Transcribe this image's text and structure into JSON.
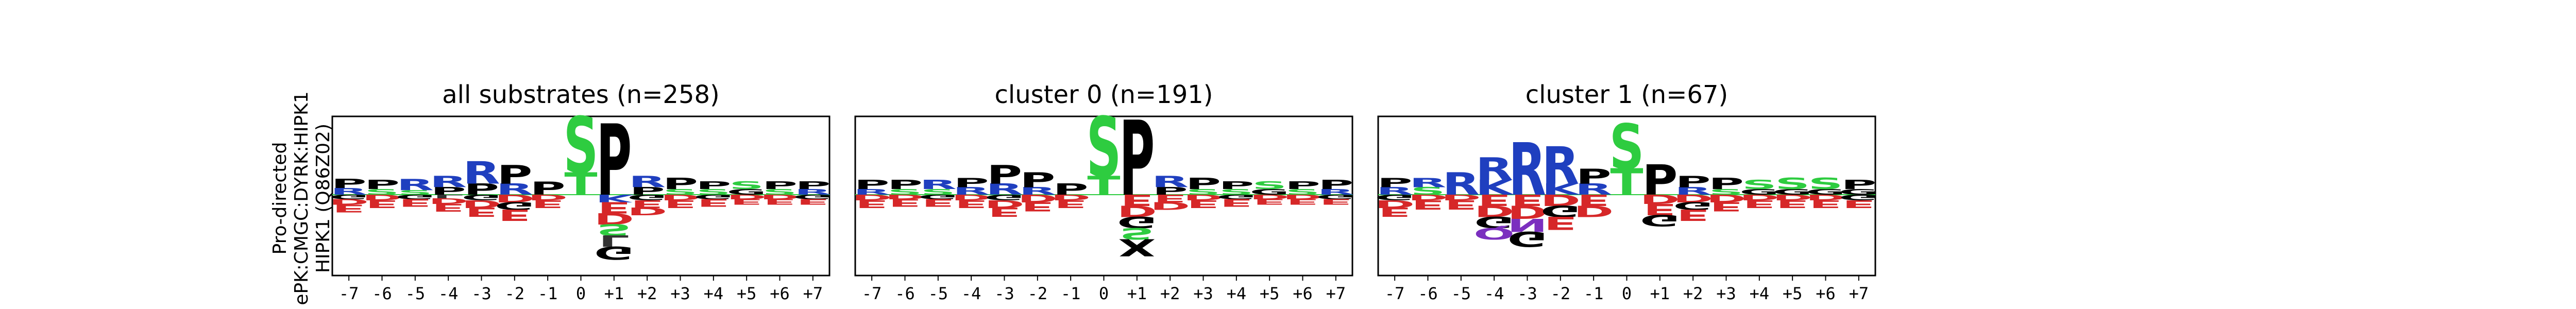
{
  "ylabel_lines": [
    "Pro-directed",
    "ePK:CMGC:DYRK:HIPK1",
    "HIPK1 (Q86Z02)"
  ],
  "colors": {
    "P": "#000000",
    "G": "#000000",
    "S": "#2ecc40",
    "T": "#2ecc40",
    "Y": "#2ecc40",
    "R": "#1f3fbf",
    "K": "#1f3fbf",
    "H": "#1f3fbf",
    "D": "#d62728",
    "E": "#d62728",
    "N": "#7b2fbf",
    "Q": "#7b2fbf",
    "A": "#333333",
    "V": "#333333",
    "L": "#333333",
    "I": "#333333",
    "M": "#333333",
    "F": "#333333",
    "W": "#333333",
    "C": "#333333",
    "X": "#000000"
  },
  "chart_data": [
    {
      "type": "sequence-logo",
      "title": "all substrates (n=258)",
      "positions": [
        "-7",
        "-6",
        "-5",
        "-4",
        "-3",
        "-2",
        "-1",
        "0",
        "+1",
        "+2",
        "+3",
        "+4",
        "+5",
        "+6",
        "+7"
      ],
      "stacks": [
        {
          "pos": [
            [
              "P",
              0.25
            ],
            [
              "R",
              0.18
            ]
          ],
          "neg": [
            [
              "E",
              0.2
            ],
            [
              "D",
              0.15
            ],
            [
              "G",
              0.12
            ]
          ]
        },
        {
          "pos": [
            [
              "P",
              0.25
            ],
            [
              "S",
              0.15
            ]
          ],
          "neg": [
            [
              "E",
              0.2
            ],
            [
              "D",
              0.15
            ]
          ]
        },
        {
          "pos": [
            [
              "R",
              0.3
            ],
            [
              "S",
              0.12
            ]
          ],
          "neg": [
            [
              "E",
              0.2
            ],
            [
              "G",
              0.12
            ]
          ]
        },
        {
          "pos": [
            [
              "R",
              0.3
            ],
            [
              "P",
              0.2
            ]
          ],
          "neg": [
            [
              "E",
              0.2
            ],
            [
              "D",
              0.15
            ],
            [
              "L",
              0.1
            ]
          ]
        },
        {
          "pos": [
            [
              "R",
              0.6
            ],
            [
              "P",
              0.3
            ]
          ],
          "neg": [
            [
              "E",
              0.25
            ],
            [
              "D",
              0.2
            ],
            [
              "G",
              0.15
            ]
          ]
        },
        {
          "pos": [
            [
              "P",
              0.5
            ],
            [
              "R",
              0.3
            ]
          ],
          "neg": [
            [
              "E",
              0.3
            ],
            [
              "D",
              0.2
            ],
            [
              "G",
              0.2
            ]
          ]
        },
        {
          "pos": [
            [
              "P",
              0.35
            ]
          ],
          "neg": [
            [
              "E",
              0.2
            ],
            [
              "D",
              0.15
            ]
          ]
        },
        {
          "pos": [
            [
              "S",
              1.5
            ],
            [
              "T",
              0.6
            ]
          ],
          "neg": []
        },
        {
          "pos": [
            [
              "P",
              1.9
            ]
          ],
          "neg": [
            [
              "E",
              0.3
            ],
            [
              "D",
              0.3
            ],
            [
              "G",
              0.35
            ],
            [
              "S",
              0.3
            ],
            [
              "K",
              0.2
            ],
            [
              "L",
              0.3
            ]
          ]
        },
        {
          "pos": [
            [
              "R",
              0.3
            ],
            [
              "P",
              0.2
            ]
          ],
          "neg": [
            [
              "E",
              0.2
            ],
            [
              "D",
              0.2
            ],
            [
              "G",
              0.15
            ]
          ]
        },
        {
          "pos": [
            [
              "P",
              0.3
            ],
            [
              "S",
              0.15
            ]
          ],
          "neg": [
            [
              "E",
              0.2
            ],
            [
              "D",
              0.15
            ]
          ]
        },
        {
          "pos": [
            [
              "P",
              0.2
            ],
            [
              "S",
              0.15
            ]
          ],
          "neg": [
            [
              "E",
              0.2
            ],
            [
              "G",
              0.12
            ]
          ]
        },
        {
          "pos": [
            [
              "S",
              0.2
            ],
            [
              "G",
              0.15
            ]
          ],
          "neg": [
            [
              "E",
              0.15
            ],
            [
              "D",
              0.12
            ]
          ]
        },
        {
          "pos": [
            [
              "P",
              0.2
            ],
            [
              "S",
              0.15
            ]
          ],
          "neg": [
            [
              "E",
              0.15
            ],
            [
              "D",
              0.12
            ]
          ]
        },
        {
          "pos": [
            [
              "P",
              0.2
            ],
            [
              "R",
              0.15
            ]
          ],
          "neg": [
            [
              "E",
              0.15
            ],
            [
              "G",
              0.12
            ]
          ]
        }
      ]
    },
    {
      "type": "sequence-logo",
      "title": "cluster 0 (n=191)",
      "positions": [
        "-7",
        "-6",
        "-5",
        "-4",
        "-3",
        "-2",
        "-1",
        "0",
        "+1",
        "+2",
        "+3",
        "+4",
        "+5",
        "+6",
        "+7"
      ],
      "stacks": [
        {
          "pos": [
            [
              "P",
              0.25
            ],
            [
              "R",
              0.15
            ]
          ],
          "neg": [
            [
              "E",
              0.2
            ],
            [
              "D",
              0.15
            ]
          ]
        },
        {
          "pos": [
            [
              "P",
              0.25
            ],
            [
              "S",
              0.15
            ]
          ],
          "neg": [
            [
              "E",
              0.2
            ],
            [
              "D",
              0.12
            ]
          ]
        },
        {
          "pos": [
            [
              "R",
              0.25
            ],
            [
              "S",
              0.15
            ]
          ],
          "neg": [
            [
              "E",
              0.2
            ],
            [
              "G",
              0.12
            ]
          ]
        },
        {
          "pos": [
            [
              "P",
              0.25
            ],
            [
              "R",
              0.2
            ]
          ],
          "neg": [
            [
              "E",
              0.2
            ],
            [
              "D",
              0.15
            ]
          ]
        },
        {
          "pos": [
            [
              "R",
              0.3
            ],
            [
              "P",
              0.5
            ]
          ],
          "neg": [
            [
              "E",
              0.25
            ],
            [
              "D",
              0.2
            ],
            [
              "G",
              0.15
            ]
          ]
        },
        {
          "pos": [
            [
              "P",
              0.4
            ],
            [
              "R",
              0.2
            ]
          ],
          "neg": [
            [
              "E",
              0.25
            ],
            [
              "D",
              0.2
            ]
          ]
        },
        {
          "pos": [
            [
              "P",
              0.3
            ]
          ],
          "neg": [
            [
              "E",
              0.2
            ],
            [
              "D",
              0.15
            ]
          ]
        },
        {
          "pos": [
            [
              "S",
              1.6
            ],
            [
              "T",
              0.5
            ]
          ],
          "neg": []
        },
        {
          "pos": [
            [
              "P",
              2.0
            ]
          ],
          "neg": [
            [
              "E",
              0.3
            ],
            [
              "D",
              0.3
            ],
            [
              "G",
              0.3
            ],
            [
              "S",
              0.3
            ],
            [
              "X",
              0.45
            ]
          ]
        },
        {
          "pos": [
            [
              "R",
              0.3
            ],
            [
              "P",
              0.2
            ]
          ],
          "neg": [
            [
              "E",
              0.2
            ],
            [
              "D",
              0.2
            ]
          ]
        },
        {
          "pos": [
            [
              "P",
              0.3
            ],
            [
              "S",
              0.15
            ]
          ],
          "neg": [
            [
              "E",
              0.2
            ],
            [
              "D",
              0.15
            ]
          ]
        },
        {
          "pos": [
            [
              "P",
              0.2
            ],
            [
              "S",
              0.15
            ]
          ],
          "neg": [
            [
              "E",
              0.2
            ],
            [
              "G",
              0.12
            ]
          ]
        },
        {
          "pos": [
            [
              "S",
              0.2
            ],
            [
              "G",
              0.15
            ]
          ],
          "neg": [
            [
              "E",
              0.15
            ],
            [
              "D",
              0.12
            ]
          ]
        },
        {
          "pos": [
            [
              "P",
              0.2
            ],
            [
              "S",
              0.15
            ]
          ],
          "neg": [
            [
              "E",
              0.15
            ],
            [
              "D",
              0.12
            ]
          ]
        },
        {
          "pos": [
            [
              "P",
              0.25
            ],
            [
              "R",
              0.15
            ]
          ],
          "neg": [
            [
              "E",
              0.15
            ],
            [
              "G",
              0.12
            ]
          ]
        }
      ]
    },
    {
      "type": "sequence-logo",
      "title": "cluster 1 (n=67)",
      "positions": [
        "-7",
        "-6",
        "-5",
        "-4",
        "-3",
        "-2",
        "-1",
        "0",
        "+1",
        "+2",
        "+3",
        "+4",
        "+5",
        "+6",
        "+7"
      ],
      "stacks": [
        {
          "pos": [
            [
              "P",
              0.25
            ],
            [
              "R",
              0.2
            ]
          ],
          "neg": [
            [
              "E",
              0.25
            ],
            [
              "D",
              0.2
            ],
            [
              "G",
              0.15
            ]
          ]
        },
        {
          "pos": [
            [
              "R",
              0.25
            ],
            [
              "S",
              0.2
            ]
          ],
          "neg": [
            [
              "E",
              0.25
            ],
            [
              "D",
              0.15
            ]
          ]
        },
        {
          "pos": [
            [
              "R",
              0.6
            ]
          ],
          "neg": [
            [
              "E",
              0.25
            ],
            [
              "D",
              0.15
            ]
          ]
        },
        {
          "pos": [
            [
              "R",
              0.6
            ],
            [
              "K",
              0.4
            ]
          ],
          "neg": [
            [
              "E",
              0.3
            ],
            [
              "D",
              0.3
            ],
            [
              "G",
              0.3
            ],
            [
              "Q",
              0.3
            ]
          ]
        },
        {
          "pos": [
            [
              "R",
              1.4
            ]
          ],
          "neg": [
            [
              "E",
              0.3
            ],
            [
              "D",
              0.35
            ],
            [
              "G",
              0.4
            ],
            [
              "N",
              0.35
            ]
          ]
        },
        {
          "pos": [
            [
              "R",
              1.0
            ],
            [
              "K",
              0.3
            ]
          ],
          "neg": [
            [
              "E",
              0.35
            ],
            [
              "D",
              0.3
            ],
            [
              "G",
              0.3
            ]
          ]
        },
        {
          "pos": [
            [
              "P",
              0.4
            ],
            [
              "R",
              0.3
            ]
          ],
          "neg": [
            [
              "E",
              0.3
            ],
            [
              "D",
              0.3
            ]
          ]
        },
        {
          "pos": [
            [
              "S",
              1.2
            ],
            [
              "T",
              0.7
            ]
          ],
          "neg": []
        },
        {
          "pos": [
            [
              "P",
              0.8
            ]
          ],
          "neg": [
            [
              "E",
              0.3
            ],
            [
              "D",
              0.25
            ],
            [
              "G",
              0.3
            ]
          ]
        },
        {
          "pos": [
            [
              "P",
              0.3
            ],
            [
              "R",
              0.2
            ]
          ],
          "neg": [
            [
              "E",
              0.3
            ],
            [
              "D",
              0.2
            ],
            [
              "G",
              0.2
            ]
          ]
        },
        {
          "pos": [
            [
              "P",
              0.3
            ],
            [
              "S",
              0.15
            ]
          ],
          "neg": [
            [
              "E",
              0.25
            ],
            [
              "D",
              0.2
            ]
          ]
        },
        {
          "pos": [
            [
              "S",
              0.25
            ],
            [
              "G",
              0.15
            ]
          ],
          "neg": [
            [
              "E",
              0.2
            ],
            [
              "D",
              0.15
            ]
          ]
        },
        {
          "pos": [
            [
              "S",
              0.3
            ],
            [
              "G",
              0.15
            ]
          ],
          "neg": [
            [
              "E",
              0.2
            ],
            [
              "D",
              0.15
            ]
          ]
        },
        {
          "pos": [
            [
              "S",
              0.3
            ],
            [
              "G",
              0.15
            ]
          ],
          "neg": [
            [
              "E",
              0.2
            ],
            [
              "D",
              0.15
            ]
          ]
        },
        {
          "pos": [
            [
              "P",
              0.25
            ],
            [
              "G",
              0.15
            ]
          ],
          "neg": [
            [
              "E",
              0.2
            ],
            [
              "G",
              0.15
            ]
          ]
        }
      ]
    }
  ]
}
